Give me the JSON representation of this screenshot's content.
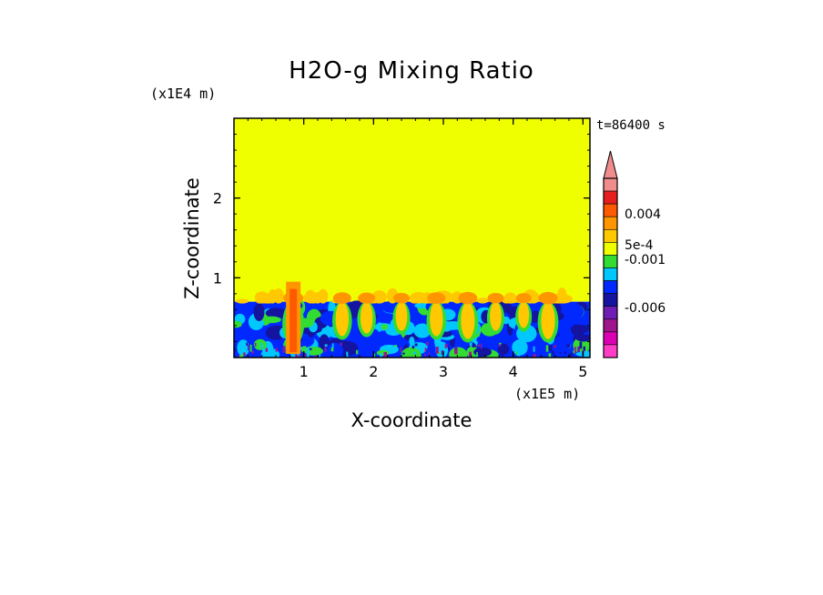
{
  "chart_data": {
    "type": "heatmap",
    "title": "H2O-g Mixing Ratio",
    "time_label": "t=86400 s",
    "xlabel": "X-coordinate",
    "ylabel": "Z-coordinate",
    "x_scale_label": "(x1E5 m)",
    "y_scale_label": "(x1E4 m)",
    "xlim": [
      0,
      5.1
    ],
    "ylim": [
      0,
      3.0
    ],
    "x_ticks": [
      1,
      2,
      3,
      4,
      5
    ],
    "x_tick_labels": [
      "1",
      "2",
      "3",
      "4",
      "5"
    ],
    "y_ticks": [
      1,
      2
    ],
    "y_tick_labels": [
      "1",
      "2"
    ],
    "grid": false,
    "legend_placement": "right",
    "boundary_layer_top": 0.7,
    "upper_layer_color": "#f0ff00",
    "mixed_layer_base_color": "#0028ff",
    "colorbar": {
      "labels": [
        "0.004",
        "5e-4",
        "-0.001",
        "-0.006"
      ],
      "colors_top_to_bottom": [
        "#f08c8c",
        "#e61e1e",
        "#ff5a00",
        "#ff9600",
        "#ffc800",
        "#f0ff00",
        "#32dc32",
        "#00c8ff",
        "#0028ff",
        "#1414a0",
        "#6e1eb4",
        "#a0148c",
        "#dc00b4",
        "#ff3cc8"
      ]
    },
    "plumes": [
      {
        "x": 0.85,
        "strength": 1.0
      },
      {
        "x": 1.55,
        "strength": 0.8
      },
      {
        "x": 1.9,
        "strength": 0.7
      },
      {
        "x": 2.4,
        "strength": 0.6
      },
      {
        "x": 2.9,
        "strength": 0.8
      },
      {
        "x": 3.35,
        "strength": 0.9
      },
      {
        "x": 3.75,
        "strength": 0.6
      },
      {
        "x": 4.15,
        "strength": 0.5
      },
      {
        "x": 4.5,
        "strength": 0.9
      }
    ]
  }
}
